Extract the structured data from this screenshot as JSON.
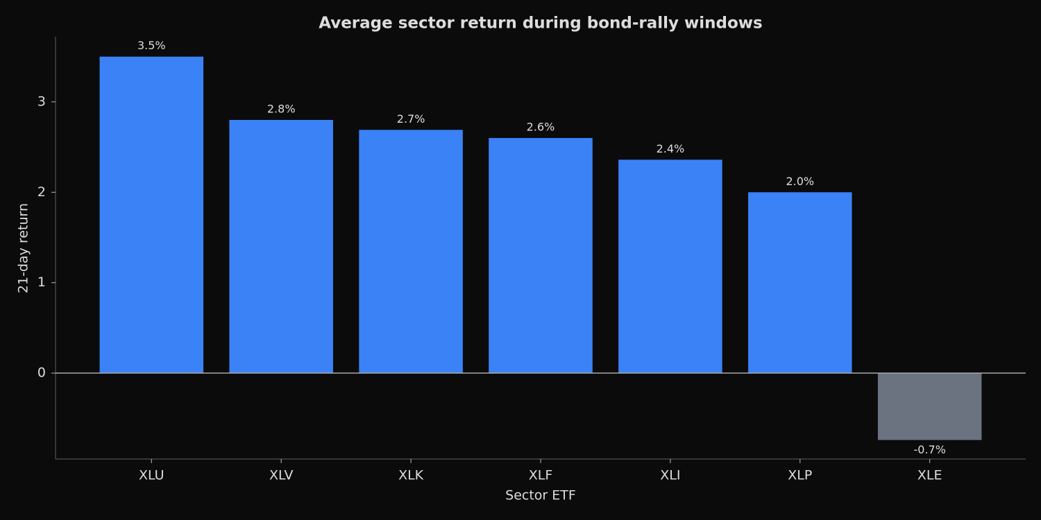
{
  "chart_data": {
    "type": "bar",
    "title": "Average sector return during bond-rally windows",
    "x_label": "Sector ETF",
    "y_label": "21-day return",
    "categories": [
      "XLU",
      "XLV",
      "XLK",
      "XLF",
      "XLI",
      "XLP",
      "XLE"
    ],
    "values": [
      3.5,
      2.8,
      2.69,
      2.6,
      2.36,
      2.0,
      -0.74
    ],
    "value_labels": [
      "3.5%",
      "2.8%",
      "2.7%",
      "2.6%",
      "2.4%",
      "2.0%",
      "-0.7%"
    ],
    "colors": [
      "#3b82f6",
      "#3b82f6",
      "#3b82f6",
      "#3b82f6",
      "#3b82f6",
      "#3b82f6",
      "#6b7280"
    ],
    "ylim": [
      -0.95,
      3.72
    ],
    "yticks": [
      0,
      1,
      2,
      3
    ],
    "grid": false
  }
}
